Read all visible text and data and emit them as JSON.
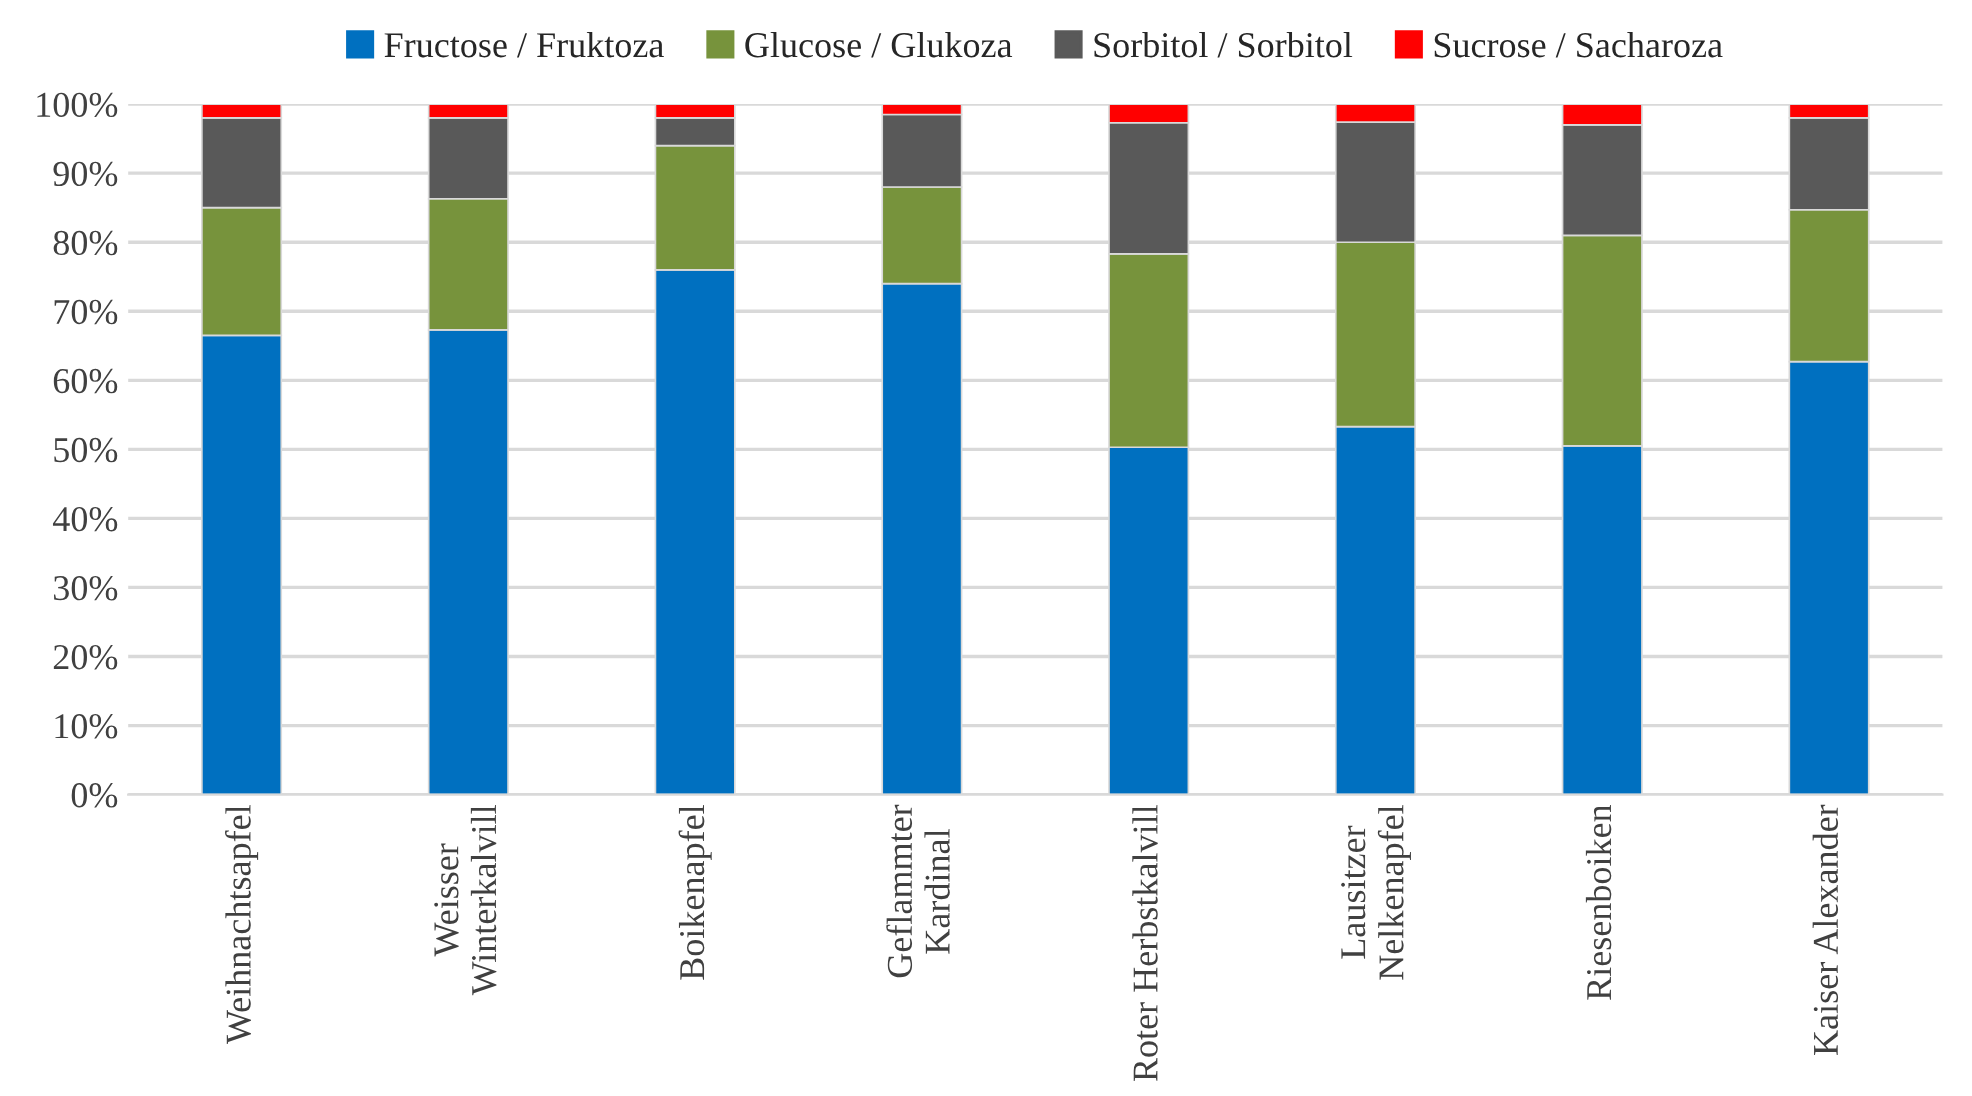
{
  "chart_data": {
    "type": "bar",
    "stacked": true,
    "categories": [
      "Weihnachtsapfel",
      "Weisser\nWinterkalvill",
      "Boikenapfel",
      "Geflammter\nKardinal",
      "Roter Herbstkalvill",
      "Lausitzer\nNelkenapfel",
      "Riesenboiken",
      "Kaiser Alexander"
    ],
    "series": [
      {
        "name": "Fructose / Fruktoza",
        "color": "#0070c0",
        "values": [
          66.5,
          67.3,
          76,
          74,
          50.3,
          53.3,
          50.5,
          62.7
        ]
      },
      {
        "name": "Glucose / Glukoza",
        "color": "#77933c",
        "values": [
          18.5,
          19,
          18,
          14,
          28,
          26.7,
          30.5,
          22
        ]
      },
      {
        "name": "Sorbitol / Sorbitol",
        "color": "#595959",
        "values": [
          13,
          11.7,
          4,
          10.5,
          19,
          17.4,
          16,
          13.3
        ]
      },
      {
        "name": "Sucrose / Sacharoza",
        "color": "#ff0000",
        "values": [
          2,
          2,
          2,
          1.5,
          2.7,
          2.6,
          3,
          2
        ]
      }
    ],
    "ylim": [
      0,
      100
    ],
    "yticks": [
      {
        "value": 0,
        "label": "0%"
      },
      {
        "value": 10,
        "label": "10%"
      },
      {
        "value": 20,
        "label": "20%"
      },
      {
        "value": 30,
        "label": "30%"
      },
      {
        "value": 40,
        "label": "40%"
      },
      {
        "value": 50,
        "label": "50%"
      },
      {
        "value": 60,
        "label": "60%"
      },
      {
        "value": 70,
        "label": "70%"
      },
      {
        "value": 80,
        "label": "80%"
      },
      {
        "value": 90,
        "label": "90%"
      },
      {
        "value": 100,
        "label": "100%"
      }
    ],
    "grid": "y",
    "legend": "top"
  }
}
